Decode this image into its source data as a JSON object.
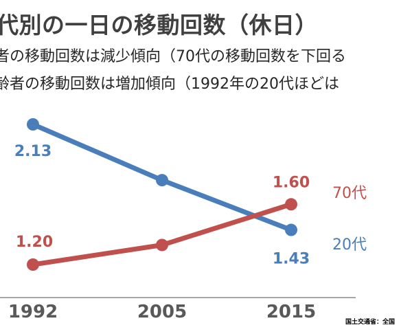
{
  "title": "代別の一日の移動回数（休日）",
  "bullets": [
    "者の移動回数は減少傾向（70代の移動回数を下回る",
    "齢者の移動回数は増加傾向（1992年の20代ほどは"
  ],
  "source": "国土交通省：全国",
  "chart_data": {
    "type": "line",
    "categories": [
      "1992",
      "2005",
      "2015"
    ],
    "ylim": [
      1.0,
      2.3
    ],
    "series": [
      {
        "name": "20代",
        "values": [
          2.13,
          1.76,
          1.43
        ],
        "color": "#4a7ebb",
        "labels": [
          "2.13",
          "",
          "1.43"
        ]
      },
      {
        "name": "70代",
        "values": [
          1.2,
          1.33,
          1.6
        ],
        "color": "#c0504d",
        "labels": [
          "1.20",
          "",
          "1.60"
        ]
      }
    ],
    "title": "",
    "xlabel": "",
    "ylabel": ""
  }
}
